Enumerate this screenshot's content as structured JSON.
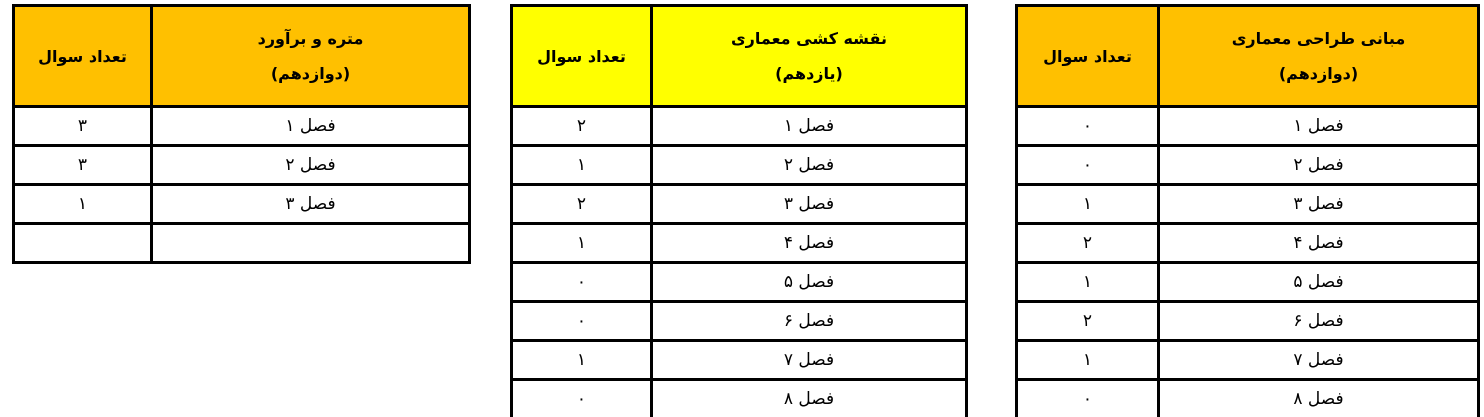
{
  "colors": {
    "header_orange": "#FFC000",
    "header_yellow": "#FFFF00",
    "border": "#000000",
    "cell_bg": "#FFFFFF"
  },
  "tables": [
    {
      "name": "metre-va-baravord",
      "header": {
        "title": "متره و برآورد",
        "grade": "(دوازدهم)",
        "count_label": "تعداد سوال",
        "bg": "#FFC000"
      },
      "rows": [
        {
          "chapter": "فصل ۱",
          "count": "۳"
        },
        {
          "chapter": "فصل ۲",
          "count": "۳"
        },
        {
          "chapter": "فصل ۳",
          "count": "۱"
        },
        {
          "chapter": "",
          "count": ""
        }
      ]
    },
    {
      "name": "naghshe-keshi-memari",
      "header": {
        "title": "نقشه کشی معماری",
        "grade": "(یازدهم)",
        "count_label": "تعداد سوال",
        "bg": "#FFFF00"
      },
      "rows": [
        {
          "chapter": "فصل ۱",
          "count": "۲"
        },
        {
          "chapter": "فصل ۲",
          "count": "۱"
        },
        {
          "chapter": "فصل ۳",
          "count": "۲"
        },
        {
          "chapter": "فصل ۴",
          "count": "۱"
        },
        {
          "chapter": "فصل ۵",
          "count": "۰"
        },
        {
          "chapter": "فصل ۶",
          "count": "۰"
        },
        {
          "chapter": "فصل ۷",
          "count": "۱"
        },
        {
          "chapter": "فصل ۸",
          "count": "۰"
        }
      ]
    },
    {
      "name": "mabani-tarahi-memari",
      "header": {
        "title": "مبانی طراحی معماری",
        "grade": "(دوازدهم)",
        "count_label": "تعداد سوال",
        "bg": "#FFC000"
      },
      "rows": [
        {
          "chapter": "فصل ۱",
          "count": "۰"
        },
        {
          "chapter": "فصل ۲",
          "count": "۰"
        },
        {
          "chapter": "فصل ۳",
          "count": "۱"
        },
        {
          "chapter": "فصل ۴",
          "count": "۲"
        },
        {
          "chapter": "فصل ۵",
          "count": "۱"
        },
        {
          "chapter": "فصل ۶",
          "count": "۲"
        },
        {
          "chapter": "فصل ۷",
          "count": "۱"
        },
        {
          "chapter": "فصل ۸",
          "count": "۰"
        }
      ]
    }
  ]
}
